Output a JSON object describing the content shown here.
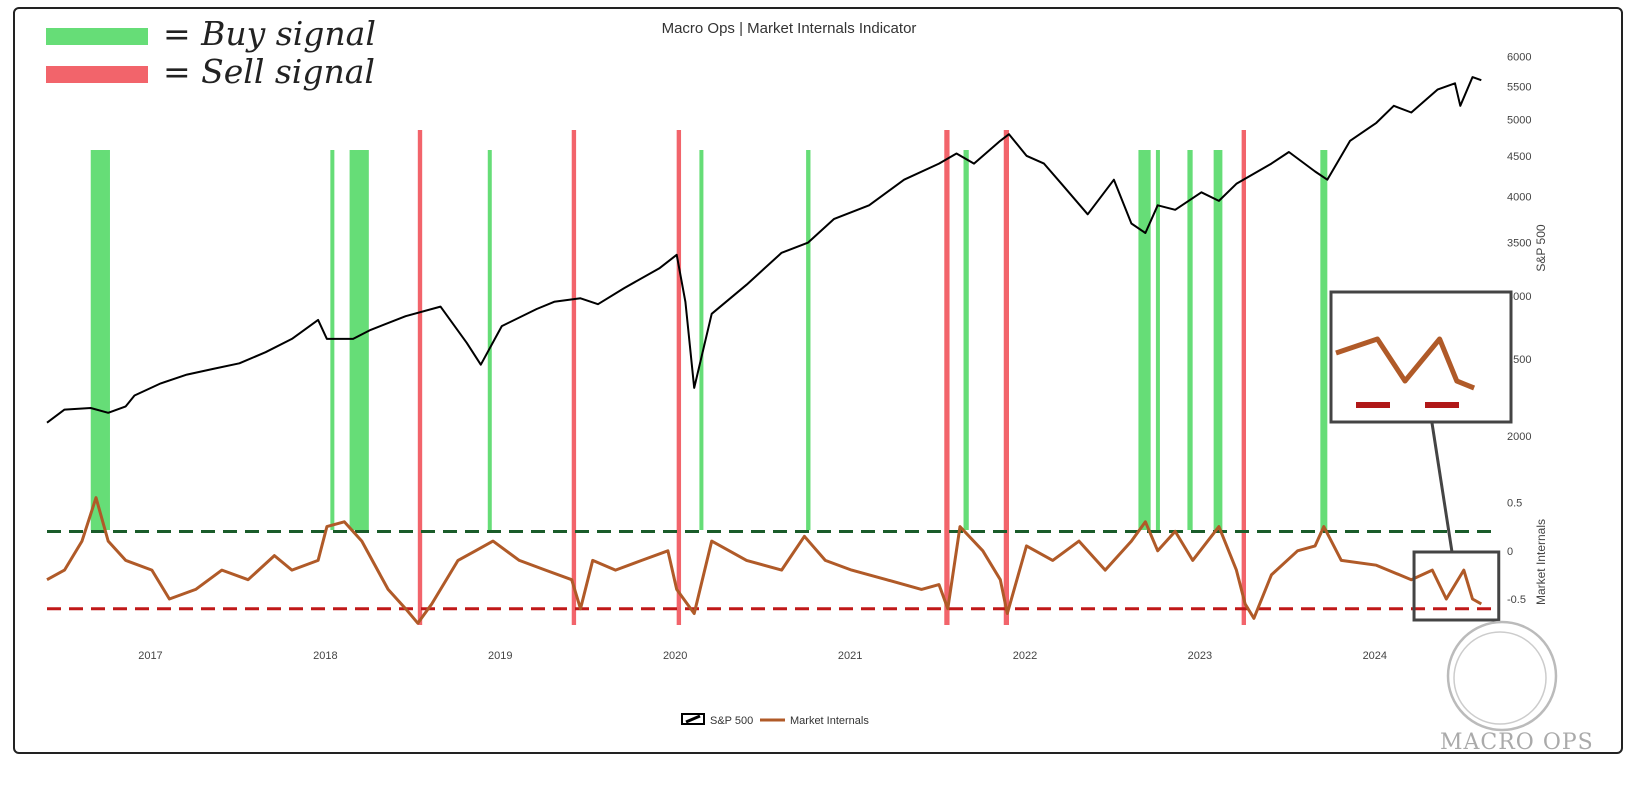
{
  "chart_data": {
    "type": "line",
    "title": "Macro Ops | Market Internals Indicator",
    "annotation_legend": [
      {
        "label": "= Buy signal",
        "color": "#66dd77"
      },
      {
        "label": "= Sell signal",
        "color": "#f2646b"
      }
    ],
    "legend": [
      "S&P 500",
      "Market Internals"
    ],
    "x_ticks": [
      "2017",
      "2018",
      "2019",
      "2020",
      "2021",
      "2022",
      "2023",
      "2024"
    ],
    "xlim": [
      2016.5,
      2024.75
    ],
    "y_top": {
      "label": "S&P 500",
      "scale": "log",
      "ticks": [
        2000,
        2500,
        3000,
        3500,
        4000,
        4500,
        5000,
        5500,
        6000
      ],
      "ylim": [
        1950,
        6200
      ]
    },
    "y_bottom": {
      "label": "Market Internals",
      "ticks": [
        0.5,
        0,
        -0.5
      ],
      "ylim": [
        -0.8,
        0.65
      ]
    },
    "thresholds": {
      "buy": 0.2,
      "sell": -0.6
    },
    "series": [
      {
        "name": "S&P 500",
        "color": "#000000",
        "axis": "top",
        "x": [
          2016.5,
          2016.6,
          2016.75,
          2016.85,
          2016.95,
          2017.0,
          2017.15,
          2017.3,
          2017.45,
          2017.6,
          2017.75,
          2017.9,
          2018.05,
          2018.1,
          2018.25,
          2018.35,
          2018.55,
          2018.75,
          2018.9,
          2018.98,
          2019.1,
          2019.3,
          2019.4,
          2019.55,
          2019.65,
          2019.8,
          2020.0,
          2020.1,
          2020.15,
          2020.2,
          2020.3,
          2020.5,
          2020.7,
          2020.85,
          2021.0,
          2021.2,
          2021.4,
          2021.6,
          2021.7,
          2021.8,
          2021.95,
          2022.0,
          2022.1,
          2022.2,
          2022.3,
          2022.45,
          2022.6,
          2022.7,
          2022.78,
          2022.85,
          2022.95,
          2023.1,
          2023.2,
          2023.3,
          2023.5,
          2023.6,
          2023.75,
          2023.82,
          2023.95,
          2024.1,
          2024.2,
          2024.3,
          2024.45,
          2024.55,
          2024.58,
          2024.65,
          2024.7
        ],
        "values": [
          2080,
          2160,
          2170,
          2140,
          2180,
          2250,
          2330,
          2390,
          2430,
          2470,
          2550,
          2650,
          2800,
          2650,
          2650,
          2720,
          2830,
          2910,
          2620,
          2460,
          2750,
          2890,
          2950,
          2980,
          2930,
          3070,
          3250,
          3380,
          2950,
          2300,
          2850,
          3100,
          3400,
          3500,
          3750,
          3900,
          4200,
          4400,
          4530,
          4400,
          4700,
          4790,
          4500,
          4400,
          4150,
          3800,
          4200,
          3700,
          3600,
          3900,
          3850,
          4050,
          3950,
          4150,
          4400,
          4550,
          4300,
          4200,
          4700,
          4950,
          5200,
          5100,
          5450,
          5550,
          5200,
          5650,
          5600
        ]
      },
      {
        "name": "Market Internals",
        "color": "#b05a28",
        "axis": "bottom",
        "x": [
          2016.5,
          2016.6,
          2016.7,
          2016.78,
          2016.85,
          2016.95,
          2017.1,
          2017.2,
          2017.35,
          2017.5,
          2017.65,
          2017.8,
          2017.9,
          2018.05,
          2018.1,
          2018.2,
          2018.3,
          2018.45,
          2018.55,
          2018.62,
          2018.7,
          2018.85,
          2018.95,
          2019.05,
          2019.2,
          2019.35,
          2019.5,
          2019.55,
          2019.62,
          2019.75,
          2019.9,
          2020.05,
          2020.1,
          2020.2,
          2020.3,
          2020.5,
          2020.7,
          2020.83,
          2020.95,
          2021.1,
          2021.3,
          2021.5,
          2021.6,
          2021.65,
          2021.72,
          2021.85,
          2021.95,
          2021.99,
          2022.1,
          2022.25,
          2022.4,
          2022.55,
          2022.7,
          2022.78,
          2022.85,
          2022.95,
          2023.05,
          2023.2,
          2023.3,
          2023.35,
          2023.4,
          2023.5,
          2023.65,
          2023.75,
          2023.8,
          2023.9,
          2024.1,
          2024.3,
          2024.42,
          2024.5,
          2024.6,
          2024.65,
          2024.7
        ],
        "values": [
          -0.3,
          -0.2,
          0.1,
          0.55,
          0.1,
          -0.1,
          -0.2,
          -0.5,
          -0.4,
          -0.2,
          -0.3,
          -0.05,
          -0.2,
          -0.1,
          0.25,
          0.3,
          0.1,
          -0.4,
          -0.6,
          -0.75,
          -0.55,
          -0.1,
          0.0,
          0.1,
          -0.1,
          -0.2,
          -0.3,
          -0.6,
          -0.1,
          -0.2,
          -0.1,
          0.0,
          -0.4,
          -0.65,
          0.1,
          -0.1,
          -0.2,
          0.15,
          -0.1,
          -0.2,
          -0.3,
          -0.4,
          -0.35,
          -0.6,
          0.25,
          0.0,
          -0.3,
          -0.65,
          0.05,
          -0.1,
          0.1,
          -0.2,
          0.1,
          0.3,
          0.0,
          0.2,
          -0.1,
          0.25,
          -0.2,
          -0.55,
          -0.7,
          -0.25,
          0.0,
          0.05,
          0.25,
          -0.1,
          -0.15,
          -0.3,
          -0.2,
          -0.5,
          -0.2,
          -0.5,
          -0.55
        ]
      }
    ],
    "signals": [
      {
        "type": "buy",
        "start": 2016.75,
        "end": 2016.86
      },
      {
        "type": "buy",
        "start": 2018.12,
        "end": 2018.14
      },
      {
        "type": "buy",
        "start": 2018.23,
        "end": 2018.34
      },
      {
        "type": "sell",
        "start": 2018.62,
        "end": 2018.645
      },
      {
        "type": "buy",
        "start": 2019.02,
        "end": 2019.04
      },
      {
        "type": "sell",
        "start": 2019.5,
        "end": 2019.525
      },
      {
        "type": "sell",
        "start": 2020.1,
        "end": 2020.125
      },
      {
        "type": "buy",
        "start": 2020.23,
        "end": 2020.25
      },
      {
        "type": "buy",
        "start": 2020.84,
        "end": 2020.865
      },
      {
        "type": "sell",
        "start": 2021.63,
        "end": 2021.66
      },
      {
        "type": "buy",
        "start": 2021.74,
        "end": 2021.77
      },
      {
        "type": "sell",
        "start": 2021.97,
        "end": 2022.0
      },
      {
        "type": "buy",
        "start": 2022.74,
        "end": 2022.81
      },
      {
        "type": "buy",
        "start": 2022.84,
        "end": 2022.86
      },
      {
        "type": "buy",
        "start": 2023.02,
        "end": 2023.05
      },
      {
        "type": "buy",
        "start": 2023.17,
        "end": 2023.22
      },
      {
        "type": "sell",
        "start": 2023.33,
        "end": 2023.355
      },
      {
        "type": "buy",
        "start": 2023.78,
        "end": 2023.82
      }
    ],
    "inset": {
      "highlight_range": [
        2024.35,
        2024.72
      ]
    },
    "watermark": "MACRO OPS"
  }
}
